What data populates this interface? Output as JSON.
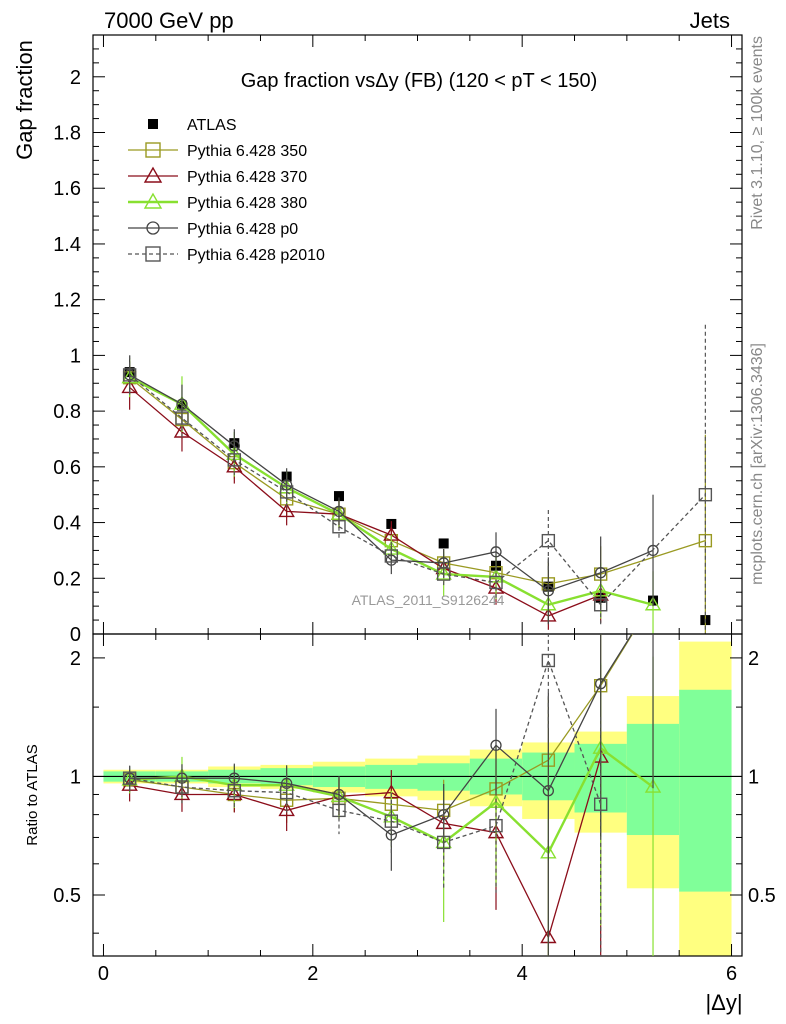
{
  "header": {
    "left": "7000 GeV pp",
    "right": "Jets"
  },
  "side_labels": {
    "rivet": "Rivet 3.1.10, ≥ 100k events",
    "mcplots": "mcplots.cern.ch [arXiv:1306.3436]"
  },
  "watermark": "ATLAS_2011_S9126244",
  "chart_data": [
    {
      "type": "scatter",
      "panel": "main",
      "title": "Gap fraction vsΔy (FB) (120 < pT < 150)",
      "ylabel": "Gap fraction",
      "xlim": [
        -0.1,
        6.1
      ],
      "ylim": [
        0,
        2.15
      ],
      "yticks": [
        0,
        0.2,
        0.4,
        0.6,
        0.8,
        1,
        1.2,
        1.4,
        1.6,
        1.8,
        2
      ],
      "ytick_labels": [
        "0",
        "0.2",
        "0.4",
        "0.6",
        "0.8",
        "1",
        "1.2",
        "1.4",
        "1.6",
        "1.8",
        "2"
      ],
      "x": [
        0.25,
        0.75,
        1.25,
        1.75,
        2.25,
        2.75,
        3.25,
        3.75,
        4.25,
        4.75,
        5.25,
        5.75
      ],
      "legend_position": "top-left",
      "series": [
        {
          "name": "ATLAS",
          "color": "#000000",
          "marker": "filled-square",
          "line": "none",
          "values": [
            0.94,
            0.82,
            0.685,
            0.565,
            0.495,
            0.395,
            0.325,
            0.245,
            0.17,
            0.13,
            0.12,
            0.05
          ]
        },
        {
          "name": "Pythia 6.428 350",
          "color": "#9a9a22",
          "marker": "open-square",
          "line": "solid",
          "values": [
            0.92,
            0.77,
            0.615,
            0.485,
            0.43,
            0.335,
            0.255,
            0.22,
            0.18,
            0.215,
            null,
            0.335
          ],
          "err": [
            0.06,
            0.07,
            0.06,
            0.06,
            0.05,
            0.05,
            0.05,
            0.06,
            0.08,
            0.1,
            null,
            0.38
          ]
        },
        {
          "name": "Pythia 6.428 370",
          "color": "#8b0d1a",
          "marker": "open-triangle",
          "line": "solid",
          "values": [
            0.885,
            0.725,
            0.6,
            0.44,
            0.43,
            0.355,
            0.235,
            0.165,
            0.065,
            0.14,
            null,
            null
          ],
          "err": [
            0.08,
            0.07,
            0.06,
            0.05,
            0.05,
            0.05,
            0.05,
            0.06,
            0.05,
            0.1,
            null,
            null
          ]
        },
        {
          "name": "Pythia 6.428 380",
          "color": "#88e030",
          "marker": "open-triangle",
          "line": "solid",
          "values": [
            0.92,
            0.825,
            0.645,
            0.525,
            0.43,
            0.305,
            0.215,
            0.205,
            0.105,
            0.155,
            0.105,
            null
          ],
          "err": [
            0.07,
            0.1,
            0.08,
            0.06,
            0.05,
            0.05,
            0.08,
            0.08,
            0.06,
            0.1,
            0.12,
            null
          ]
        },
        {
          "name": "Pythia 6.428 p0",
          "color": "#444444",
          "marker": "open-circle",
          "line": "solid",
          "values": [
            0.93,
            0.825,
            0.675,
            0.535,
            0.44,
            0.265,
            0.255,
            0.295,
            0.155,
            0.22,
            0.3,
            null
          ],
          "err": [
            0.07,
            0.07,
            0.06,
            0.06,
            0.05,
            0.05,
            0.05,
            0.07,
            0.12,
            0.13,
            0.2,
            null
          ]
        },
        {
          "name": "Pythia 6.428 p2010",
          "color": "#555555",
          "marker": "open-square",
          "line": "dashed",
          "values": [
            0.93,
            0.775,
            0.625,
            0.51,
            0.385,
            0.28,
            0.215,
            0.185,
            0.335,
            0.105,
            null,
            0.5
          ],
          "err": [
            0.07,
            0.07,
            0.06,
            0.06,
            0.05,
            0.05,
            0.05,
            0.06,
            0.11,
            0.07,
            null,
            0.61
          ]
        }
      ]
    },
    {
      "type": "line",
      "panel": "ratio",
      "xlabel": "|Δy|",
      "ylabel": "Ratio to ATLAS",
      "xlim": [
        -0.1,
        6.1
      ],
      "xticks": [
        0,
        2,
        4,
        6
      ],
      "xtick_labels": [
        "0",
        "2",
        "4",
        "6"
      ],
      "ylim": [
        0.35,
        2.3
      ],
      "scale": "log",
      "yticks": [
        0.5,
        1,
        2
      ],
      "ytick_labels": [
        "0.5",
        "1",
        "2"
      ],
      "x": [
        0.25,
        0.75,
        1.25,
        1.75,
        2.25,
        2.75,
        3.25,
        3.75,
        4.25,
        4.75,
        5.25,
        5.75
      ],
      "reference_line": 1,
      "atlas_band_green": [
        [
          0.97,
          1.03
        ],
        [
          0.97,
          1.03
        ],
        [
          0.96,
          1.04
        ],
        [
          0.95,
          1.05
        ],
        [
          0.94,
          1.06
        ],
        [
          0.93,
          1.07
        ],
        [
          0.92,
          1.08
        ],
        [
          0.9,
          1.11
        ],
        [
          0.87,
          1.15
        ],
        [
          0.81,
          1.21
        ],
        [
          0.71,
          1.36
        ],
        [
          0.51,
          1.66
        ]
      ],
      "atlas_band_yellow": [
        [
          0.96,
          1.04
        ],
        [
          0.96,
          1.04
        ],
        [
          0.94,
          1.06
        ],
        [
          0.93,
          1.07
        ],
        [
          0.91,
          1.09
        ],
        [
          0.89,
          1.11
        ],
        [
          0.87,
          1.13
        ],
        [
          0.84,
          1.17
        ],
        [
          0.78,
          1.22
        ],
        [
          0.72,
          1.3
        ],
        [
          0.52,
          1.6
        ],
        [
          0.3,
          2.2
        ]
      ],
      "series": [
        {
          "name": "Pythia 6.428 350",
          "color": "#9a9a22",
          "marker": "open-square",
          "line": "solid",
          "values": [
            0.98,
            0.94,
            0.9,
            0.87,
            0.88,
            0.85,
            0.82,
            0.93,
            1.1,
            1.7,
            2.8,
            null
          ]
        },
        {
          "name": "Pythia 6.428 370",
          "color": "#8b0d1a",
          "marker": "open-triangle",
          "line": "solid",
          "values": [
            0.95,
            0.9,
            0.9,
            0.82,
            0.89,
            0.91,
            0.76,
            0.72,
            0.39,
            1.12,
            null,
            null
          ]
        },
        {
          "name": "Pythia 6.428 380",
          "color": "#88e030",
          "marker": "open-triangle",
          "line": "solid",
          "values": [
            0.98,
            1.0,
            0.95,
            0.95,
            0.89,
            0.79,
            0.68,
            0.86,
            0.64,
            1.18,
            0.94,
            null
          ]
        },
        {
          "name": "Pythia 6.428 p0",
          "color": "#444444",
          "marker": "open-circle",
          "line": "solid",
          "values": [
            0.99,
            0.99,
            0.99,
            0.96,
            0.9,
            0.71,
            0.8,
            1.2,
            0.92,
            1.72,
            2.8,
            null
          ]
        },
        {
          "name": "Pythia 6.428 p2010",
          "color": "#555555",
          "marker": "open-square",
          "line": "dashed",
          "values": [
            0.99,
            0.94,
            0.92,
            0.91,
            0.82,
            0.77,
            0.68,
            0.75,
            1.97,
            0.85,
            null,
            null
          ]
        }
      ]
    }
  ]
}
